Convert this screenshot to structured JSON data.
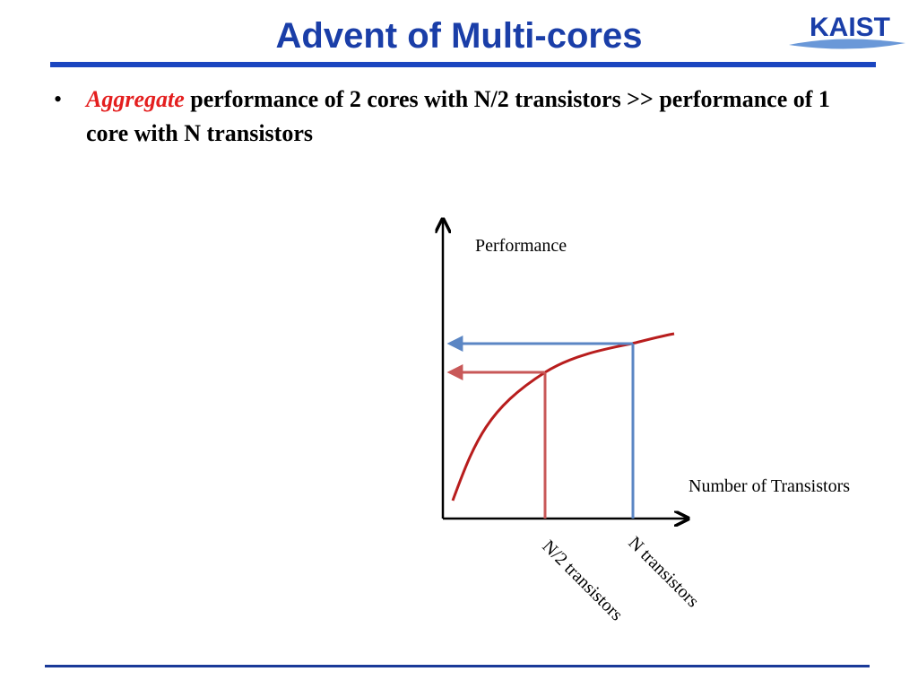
{
  "slide": {
    "title": "Advent of Multi-cores",
    "logo_text": "KAIST"
  },
  "bullet": {
    "symbol": "•",
    "emphasis": "Aggregate",
    "text": " performance of 2 cores with N/2 transistors >> performance of 1 core with N transistors"
  },
  "diagram": {
    "y_axis_label": "Performance",
    "x_axis_label": "Number of Transistors",
    "half_label": "N/2 transistors",
    "full_label": "N transistors"
  },
  "colors": {
    "title": "#1a3ea8",
    "curve": "#b81d1d",
    "half_marker": "#c85858",
    "full_marker": "#5b86c4",
    "emphasis": "#e41f1f"
  }
}
